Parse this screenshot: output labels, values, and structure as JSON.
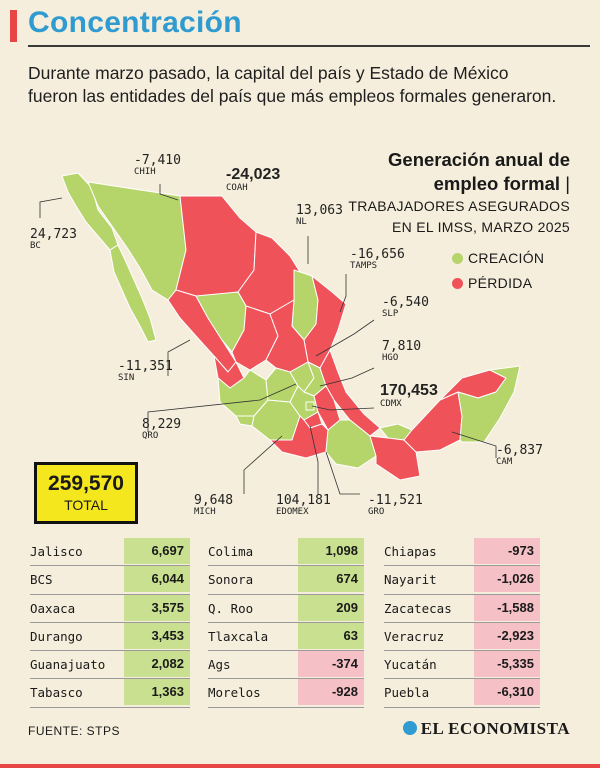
{
  "title": "Concentración",
  "intro": "Durante marzo pasado, la capital del país y Estado de México fueron las entidades del país que más empleos formales generaron.",
  "legend": {
    "title_line1": "Generación anual de",
    "title_line2": "empleo formal",
    "sub_line1": "TRABAJADORES ASEGURADOS",
    "sub_line2": "EN EL IMSS, MARZO 2025",
    "creacion": "CREACIÓN",
    "perdida": "PÉRDIDA"
  },
  "colors": {
    "creacion": "#b5d46a",
    "perdida": "#f0525a",
    "title": "#2f9bd0",
    "total_bg": "#f5e71d"
  },
  "map_labels": {
    "chih": {
      "value": "-7,410",
      "code": "CHIH"
    },
    "coah": {
      "value": "-24,023",
      "code": "COAH"
    },
    "nl": {
      "value": "13,063",
      "code": "NL"
    },
    "bc": {
      "value": "24,723",
      "code": "BC"
    },
    "tamps": {
      "value": "-16,656",
      "code": "TAMPS"
    },
    "slp": {
      "value": "-6,540",
      "code": "SLP"
    },
    "hgo": {
      "value": "7,810",
      "code": "HGO"
    },
    "sin": {
      "value": "-11,351",
      "code": "SIN"
    },
    "cdmx": {
      "value": "170,453",
      "code": "CDMX"
    },
    "qro": {
      "value": "8,229",
      "code": "QRO"
    },
    "cam": {
      "value": "-6,837",
      "code": "CAM"
    },
    "mich": {
      "value": "9,648",
      "code": "MICH"
    },
    "edomex": {
      "value": "104,181",
      "code": "EDOMEX"
    },
    "gro": {
      "value": "-11,521",
      "code": "GRO"
    }
  },
  "total": {
    "value": "259,570",
    "label": "TOTAL"
  },
  "table": {
    "col1": [
      {
        "name": "Jalisco",
        "value": "6,697",
        "sign": "pos"
      },
      {
        "name": "BCS",
        "value": "6,044",
        "sign": "pos"
      },
      {
        "name": "Oaxaca",
        "value": "3,575",
        "sign": "pos"
      },
      {
        "name": "Durango",
        "value": "3,453",
        "sign": "pos"
      },
      {
        "name": "Guanajuato",
        "value": "2,082",
        "sign": "pos"
      },
      {
        "name": "Tabasco",
        "value": "1,363",
        "sign": "pos"
      }
    ],
    "col2": [
      {
        "name": "Colima",
        "value": "1,098",
        "sign": "pos"
      },
      {
        "name": "Sonora",
        "value": "674",
        "sign": "pos"
      },
      {
        "name": "Q. Roo",
        "value": "209",
        "sign": "pos"
      },
      {
        "name": "Tlaxcala",
        "value": "63",
        "sign": "pos"
      },
      {
        "name": "Ags",
        "value": "-374",
        "sign": "neg"
      },
      {
        "name": "Morelos",
        "value": "-928",
        "sign": "neg"
      }
    ],
    "col3": [
      {
        "name": "Chiapas",
        "value": "-973",
        "sign": "neg"
      },
      {
        "name": "Nayarit",
        "value": "-1,026",
        "sign": "neg"
      },
      {
        "name": "Zacatecas",
        "value": "-1,588",
        "sign": "neg"
      },
      {
        "name": "Veracruz",
        "value": "-2,923",
        "sign": "neg"
      },
      {
        "name": "Yucatán",
        "value": "-5,335",
        "sign": "neg"
      },
      {
        "name": "Puebla",
        "value": "-6,310",
        "sign": "neg"
      }
    ]
  },
  "source": "FUENTE: STPS",
  "brand": "EL ECONOMISTA"
}
